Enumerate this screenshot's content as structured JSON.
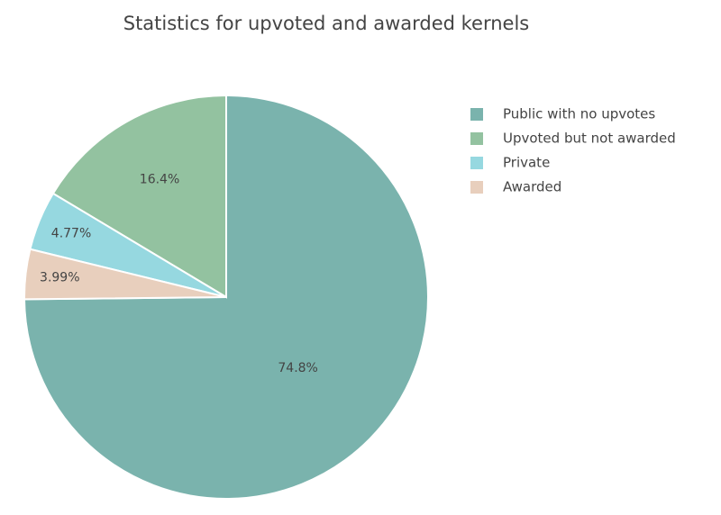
{
  "chart_data": {
    "type": "pie",
    "title": "Statistics for upvoted and awarded kernels",
    "categories": [
      "Public with no upvotes",
      "Upvoted but not awarded",
      "Private",
      "Awarded"
    ],
    "values": [
      74.8,
      16.4,
      4.77,
      3.99
    ],
    "value_labels": [
      "74.8%",
      "16.4%",
      "4.77%",
      "3.99%"
    ],
    "colors": [
      "#7ab3ad",
      "#93c2a0",
      "#96d8e0",
      "#e8cfbd"
    ],
    "direction": "counterclockwise",
    "legend": "top-right"
  }
}
